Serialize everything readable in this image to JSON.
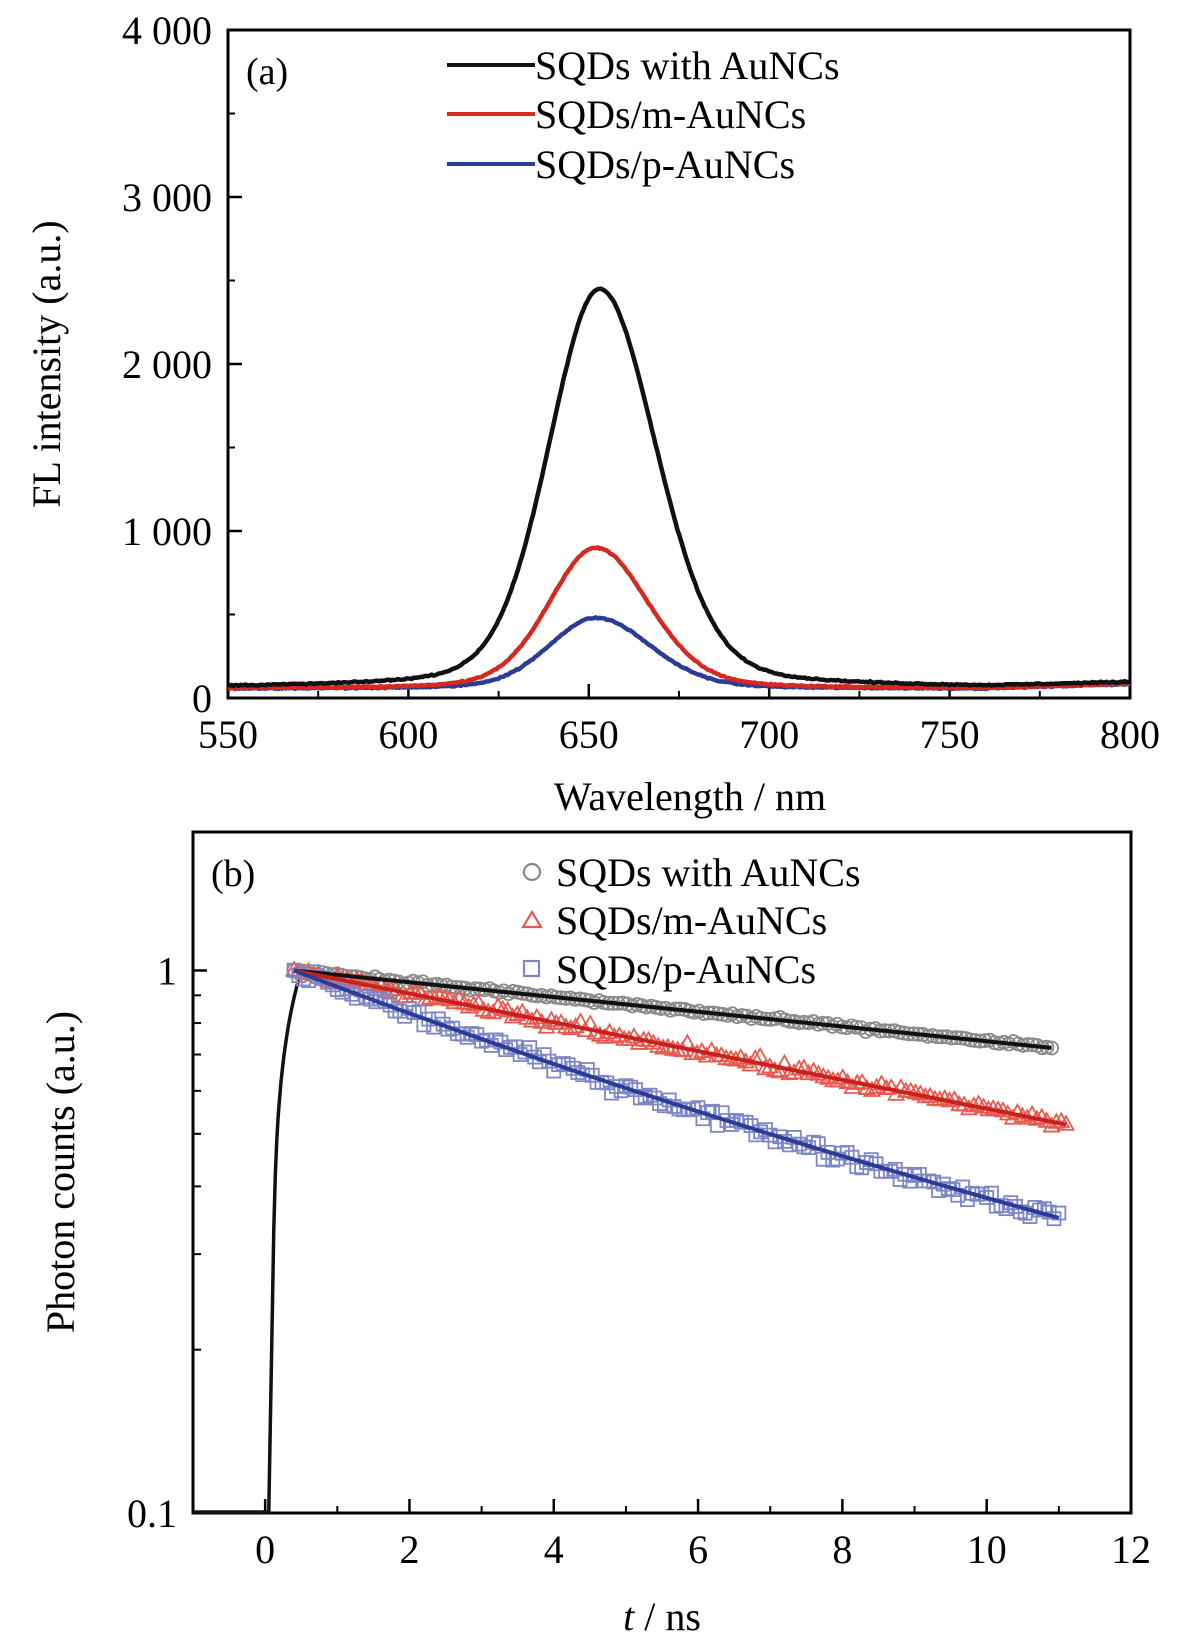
{
  "chart_data": [
    {
      "panel": "(a)",
      "type": "line",
      "xlabel": "Wavelength / nm",
      "ylabel": "FL intensity (a.u.)",
      "xlim": [
        550,
        800
      ],
      "ylim": [
        0,
        4000
      ],
      "x_ticks": [
        "550",
        "600",
        "650",
        "700",
        "750",
        "800"
      ],
      "y_ticks": [
        "0",
        "1 000",
        "2 000",
        "3 000",
        "4 000"
      ],
      "legend_position": "top-center",
      "series": [
        {
          "name": "SQDs with AuNCs",
          "color": "#111111",
          "peak_x": 653,
          "peak_y": 2450,
          "sigma_left": 14,
          "sigma_right": 15.5,
          "baseline": 60
        },
        {
          "name": "SQDs/m-AuNCs",
          "color": "#d42a22",
          "peak_x": 652,
          "peak_y": 900,
          "sigma_left": 13,
          "sigma_right": 14.5,
          "baseline": 55
        },
        {
          "name": "SQDs/p-AuNCs",
          "color": "#2a3c98",
          "peak_x": 652,
          "peak_y": 480,
          "sigma_left": 13,
          "sigma_right": 15,
          "baseline": 55
        }
      ]
    },
    {
      "panel": "(b)",
      "type": "scatter",
      "xlabel_italic": "t",
      "xlabel_rest": " / ns",
      "ylabel": "Photon counts (a.u.)",
      "xlim": [
        -1,
        12
      ],
      "ylim": [
        0.1,
        1.8
      ],
      "y_scale": "log",
      "x_ticks": [
        "0",
        "2",
        "4",
        "6",
        "8",
        "10",
        "12"
      ],
      "y_ticks": [
        "0.1",
        "1"
      ],
      "legend_position": "top-center",
      "series": [
        {
          "name": "SQDs with AuNCs",
          "marker": "circle",
          "color": "#8a8a8a",
          "fit_color": "#111111",
          "x_start": 0.4,
          "x_end": 10.9,
          "end_value": 0.72
        },
        {
          "name": "SQDs/m-AuNCs",
          "marker": "triangle",
          "color": "#e85a50",
          "fit_color": "#c8201c",
          "x_start": 0.4,
          "x_end": 11.1,
          "end_value": 0.52
        },
        {
          "name": "SQDs/p-AuNCs",
          "marker": "square",
          "color": "#7f86c6",
          "fit_color": "#2a3c98",
          "x_start": 0.4,
          "x_end": 11.0,
          "end_value": 0.35
        }
      ]
    }
  ]
}
